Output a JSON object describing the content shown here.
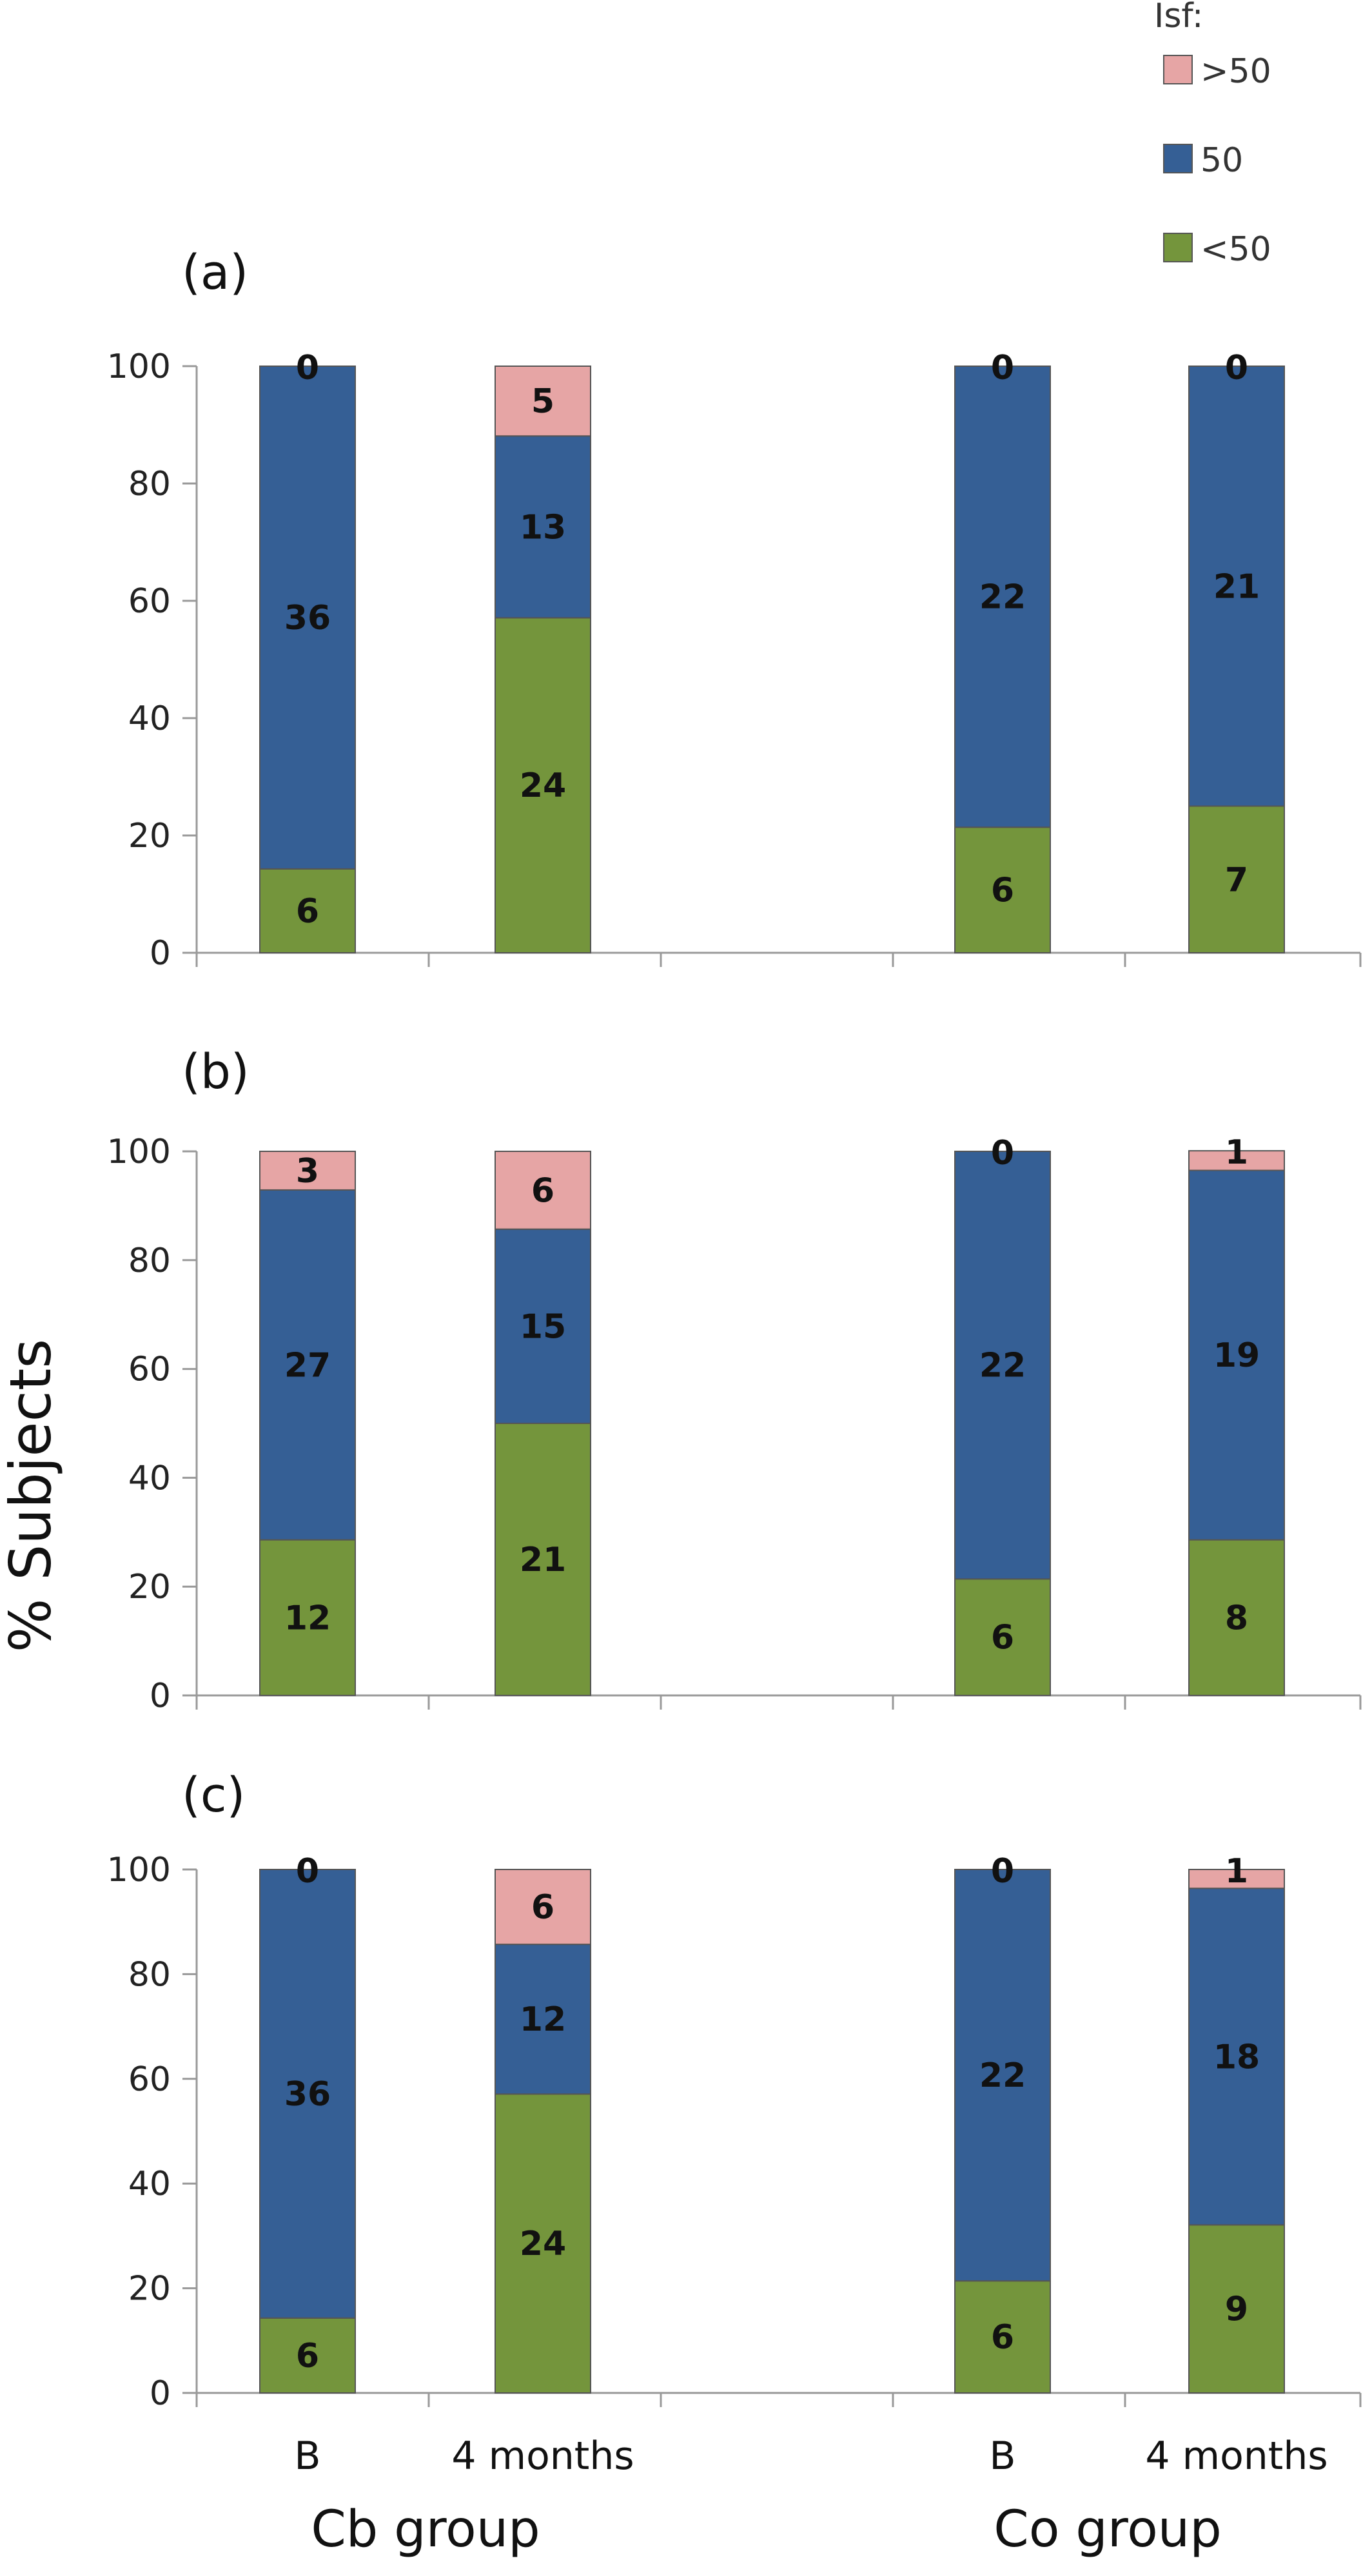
{
  "chart_data": {
    "type": "stacked_bar",
    "ylabel": "% Subjects",
    "ylim": [
      0,
      100
    ],
    "yticks": [
      "0",
      "20",
      "40",
      "60",
      "80",
      "100"
    ],
    "legend": {
      "title": "Isf:",
      "placement": "top-right",
      "entries": [
        {
          "label": ">50",
          "color": "#e6a5a5"
        },
        {
          "label": "50",
          "color": "#355f95"
        },
        {
          "label": "<50",
          "color": "#74953c"
        }
      ]
    },
    "categories": [
      "B",
      "4 months",
      "B",
      "4 months"
    ],
    "groups": [
      "Cb group",
      "Co group"
    ],
    "series_names": [
      "<50",
      "50",
      ">50"
    ],
    "panels": [
      {
        "label": "(a)",
        "bars": [
          {
            "counts": [
              6,
              36,
              0
            ],
            "percents": [
              14.3,
              85.7,
              0
            ]
          },
          {
            "counts": [
              24,
              13,
              5
            ],
            "percents": [
              57.1,
              31.0,
              11.9
            ]
          },
          {
            "counts": [
              6,
              22,
              0
            ],
            "percents": [
              21.4,
              78.6,
              0
            ]
          },
          {
            "counts": [
              7,
              21,
              0
            ],
            "percents": [
              25.0,
              75.0,
              0
            ]
          }
        ]
      },
      {
        "label": "(b)",
        "bars": [
          {
            "counts": [
              12,
              27,
              3
            ],
            "percents": [
              28.6,
              64.3,
              7.1
            ]
          },
          {
            "counts": [
              21,
              15,
              6
            ],
            "percents": [
              50.0,
              35.7,
              14.3
            ]
          },
          {
            "counts": [
              6,
              22,
              0
            ],
            "percents": [
              21.4,
              78.6,
              0
            ]
          },
          {
            "counts": [
              8,
              19,
              1
            ],
            "percents": [
              28.6,
              67.9,
              3.6
            ]
          }
        ]
      },
      {
        "label": "(c)",
        "bars": [
          {
            "counts": [
              6,
              36,
              0
            ],
            "percents": [
              14.3,
              85.7,
              0
            ]
          },
          {
            "counts": [
              24,
              12,
              6
            ],
            "percents": [
              57.1,
              28.6,
              14.3
            ]
          },
          {
            "counts": [
              6,
              22,
              0
            ],
            "percents": [
              21.4,
              78.6,
              0
            ]
          },
          {
            "counts": [
              9,
              18,
              1
            ],
            "percents": [
              32.1,
              64.3,
              3.6
            ]
          }
        ]
      }
    ]
  }
}
